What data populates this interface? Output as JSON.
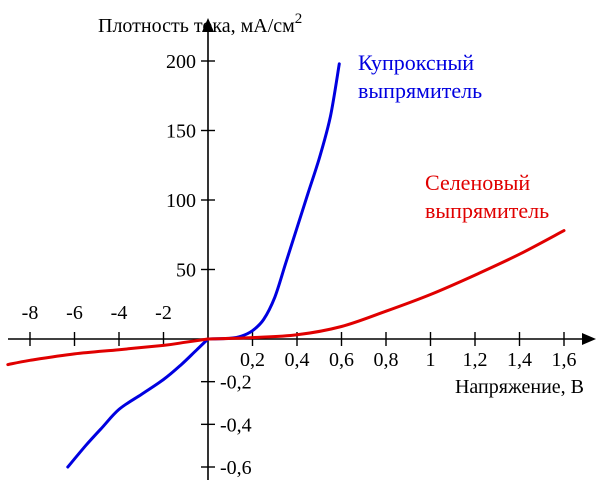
{
  "chart_data": {
    "type": "line",
    "title": "",
    "ylabel": "Плотность тока, мА/см",
    "ylabel_sup": "2",
    "xlabel": "Напряжение, В",
    "axes": {
      "x_right": {
        "range": [
          0,
          1.6
        ],
        "ticks": [
          0.2,
          0.4,
          0.6,
          0.8,
          1,
          1.2,
          1.4,
          1.6
        ],
        "tick_labels": [
          "0,2",
          "0,4",
          "0,6",
          "0,8",
          "1",
          "1,2",
          "1,4",
          "1,6"
        ]
      },
      "x_left": {
        "range": [
          -8,
          0
        ],
        "ticks": [
          -8,
          -6,
          -4,
          -2
        ],
        "tick_labels": [
          "-8",
          "-6",
          "-4",
          "-2"
        ]
      },
      "y_top": {
        "range": [
          0,
          200
        ],
        "ticks": [
          50,
          100,
          150,
          200
        ],
        "tick_labels": [
          "50",
          "100",
          "150",
          "200"
        ]
      },
      "y_bottom": {
        "range": [
          -0.6,
          0
        ],
        "ticks": [
          -0.2,
          -0.4,
          -0.6
        ],
        "tick_labels": [
          "-0,2",
          "-0,4",
          "-0,6"
        ]
      }
    },
    "grid": false,
    "series": [
      {
        "name": "Купроксный выпрямитель",
        "label_lines": [
          "Купроксный",
          "выпрямитель"
        ],
        "color": "#0000e0",
        "forward": [
          [
            0,
            0
          ],
          [
            0.1,
            0.5
          ],
          [
            0.15,
            2
          ],
          [
            0.2,
            6
          ],
          [
            0.25,
            14
          ],
          [
            0.3,
            30
          ],
          [
            0.35,
            55
          ],
          [
            0.4,
            80
          ],
          [
            0.45,
            105
          ],
          [
            0.5,
            130
          ],
          [
            0.55,
            160
          ],
          [
            0.59,
            198
          ]
        ],
        "reverse": [
          [
            -6.3,
            -0.6
          ],
          [
            -5.5,
            -0.5
          ],
          [
            -4.8,
            -0.42
          ],
          [
            -4,
            -0.33
          ],
          [
            -3,
            -0.26
          ],
          [
            -2,
            -0.19
          ],
          [
            -1.2,
            -0.12
          ],
          [
            -0.5,
            -0.05
          ],
          [
            0,
            0
          ]
        ]
      },
      {
        "name": "Селеновый выпрямитель",
        "label_lines": [
          "Селеновый",
          "выпрямитель"
        ],
        "color": "#e00000",
        "forward": [
          [
            0,
            0
          ],
          [
            0.2,
            1
          ],
          [
            0.4,
            3
          ],
          [
            0.6,
            9
          ],
          [
            0.8,
            20
          ],
          [
            1.0,
            32
          ],
          [
            1.2,
            46
          ],
          [
            1.4,
            61
          ],
          [
            1.6,
            78
          ]
        ],
        "reverse": [
          [
            -9,
            -0.12
          ],
          [
            -8,
            -0.1
          ],
          [
            -6,
            -0.07
          ],
          [
            -4,
            -0.05
          ],
          [
            -2,
            -0.03
          ],
          [
            -1,
            -0.015
          ],
          [
            0,
            0
          ]
        ]
      }
    ]
  }
}
